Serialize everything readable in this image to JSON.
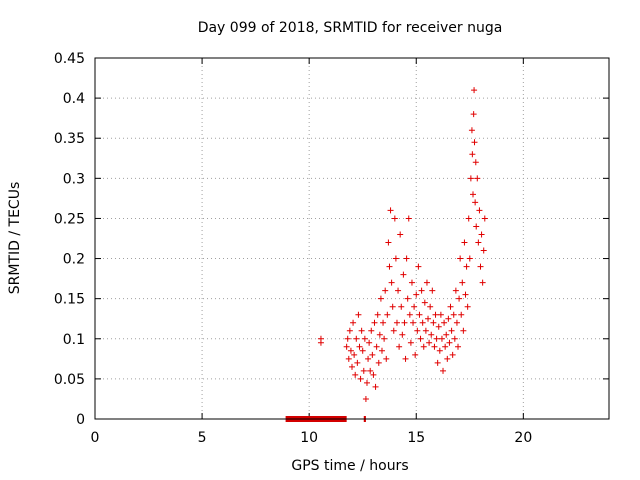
{
  "chart_data": {
    "type": "scatter",
    "title": "Day 099 of 2018, SRMTID for receiver nuga",
    "xlabel": "GPS time / hours",
    "ylabel": "SRMTID / TECUs",
    "xlim": [
      0,
      24
    ],
    "ylim": [
      0,
      0.45
    ],
    "x_ticks": [
      0,
      5,
      10,
      15,
      20
    ],
    "x_tick_labels": [
      "0",
      "5",
      "10",
      "15",
      "20"
    ],
    "y_ticks": [
      0,
      0.05,
      0.1,
      0.15,
      0.2,
      0.25,
      0.3,
      0.35,
      0.4,
      0.45
    ],
    "y_tick_labels": [
      "0",
      "0.05",
      "0.1",
      "0.15",
      "0.2",
      "0.25",
      "0.3",
      "0.35",
      "0.4",
      "0.45"
    ],
    "grid": true,
    "marker": "+",
    "marker_color": "#e00000",
    "coverage_color": "#d40000",
    "coverage_segments": [
      {
        "start": 8.9,
        "end": 11.75
      },
      {
        "start": 12.55,
        "end": 12.65
      }
    ],
    "series": [
      {
        "name": "SRMTID",
        "points": [
          [
            10.55,
            0.095
          ],
          [
            10.55,
            0.1
          ],
          [
            11.75,
            0.09
          ],
          [
            11.8,
            0.1
          ],
          [
            11.85,
            0.075
          ],
          [
            11.9,
            0.11
          ],
          [
            11.95,
            0.085
          ],
          [
            12.0,
            0.065
          ],
          [
            12.05,
            0.12
          ],
          [
            12.1,
            0.08
          ],
          [
            12.15,
            0.055
          ],
          [
            12.2,
            0.1
          ],
          [
            12.25,
            0.07
          ],
          [
            12.3,
            0.13
          ],
          [
            12.35,
            0.09
          ],
          [
            12.4,
            0.05
          ],
          [
            12.45,
            0.11
          ],
          [
            12.5,
            0.085
          ],
          [
            12.55,
            0.06
          ],
          [
            12.6,
            0.1
          ],
          [
            12.65,
            0.025
          ],
          [
            12.7,
            0.045
          ],
          [
            12.75,
            0.075
          ],
          [
            12.8,
            0.095
          ],
          [
            12.85,
            0.06
          ],
          [
            12.9,
            0.11
          ],
          [
            12.95,
            0.08
          ],
          [
            13.0,
            0.055
          ],
          [
            13.05,
            0.12
          ],
          [
            13.1,
            0.04
          ],
          [
            13.15,
            0.09
          ],
          [
            13.2,
            0.13
          ],
          [
            13.25,
            0.07
          ],
          [
            13.3,
            0.105
          ],
          [
            13.35,
            0.15
          ],
          [
            13.4,
            0.085
          ],
          [
            13.45,
            0.12
          ],
          [
            13.5,
            0.1
          ],
          [
            13.55,
            0.16
          ],
          [
            13.6,
            0.075
          ],
          [
            13.65,
            0.13
          ],
          [
            13.7,
            0.22
          ],
          [
            13.75,
            0.19
          ],
          [
            13.8,
            0.26
          ],
          [
            13.85,
            0.17
          ],
          [
            13.9,
            0.14
          ],
          [
            13.95,
            0.11
          ],
          [
            14.0,
            0.25
          ],
          [
            14.05,
            0.2
          ],
          [
            14.1,
            0.12
          ],
          [
            14.15,
            0.16
          ],
          [
            14.2,
            0.09
          ],
          [
            14.25,
            0.23
          ],
          [
            14.3,
            0.14
          ],
          [
            14.35,
            0.105
          ],
          [
            14.4,
            0.18
          ],
          [
            14.45,
            0.12
          ],
          [
            14.5,
            0.075
          ],
          [
            14.55,
            0.2
          ],
          [
            14.6,
            0.15
          ],
          [
            14.65,
            0.25
          ],
          [
            14.7,
            0.13
          ],
          [
            14.75,
            0.095
          ],
          [
            14.8,
            0.17
          ],
          [
            14.85,
            0.12
          ],
          [
            14.9,
            0.14
          ],
          [
            14.95,
            0.08
          ],
          [
            15.0,
            0.155
          ],
          [
            15.05,
            0.11
          ],
          [
            15.1,
            0.19
          ],
          [
            15.15,
            0.13
          ],
          [
            15.2,
            0.1
          ],
          [
            15.25,
            0.16
          ],
          [
            15.3,
            0.12
          ],
          [
            15.35,
            0.09
          ],
          [
            15.4,
            0.145
          ],
          [
            15.45,
            0.11
          ],
          [
            15.5,
            0.17
          ],
          [
            15.55,
            0.125
          ],
          [
            15.6,
            0.095
          ],
          [
            15.65,
            0.14
          ],
          [
            15.7,
            0.105
          ],
          [
            15.75,
            0.16
          ],
          [
            15.8,
            0.12
          ],
          [
            15.85,
            0.09
          ],
          [
            15.9,
            0.13
          ],
          [
            15.95,
            0.1
          ],
          [
            16.0,
            0.07
          ],
          [
            16.05,
            0.115
          ],
          [
            16.1,
            0.085
          ],
          [
            16.15,
            0.13
          ],
          [
            16.2,
            0.1
          ],
          [
            16.25,
            0.06
          ],
          [
            16.3,
            0.12
          ],
          [
            16.35,
            0.09
          ],
          [
            16.4,
            0.105
          ],
          [
            16.45,
            0.075
          ],
          [
            16.5,
            0.125
          ],
          [
            16.55,
            0.095
          ],
          [
            16.6,
            0.14
          ],
          [
            16.65,
            0.11
          ],
          [
            16.7,
            0.08
          ],
          [
            16.75,
            0.13
          ],
          [
            16.8,
            0.1
          ],
          [
            16.85,
            0.16
          ],
          [
            16.9,
            0.12
          ],
          [
            16.95,
            0.09
          ],
          [
            17.0,
            0.15
          ],
          [
            17.05,
            0.2
          ],
          [
            17.1,
            0.13
          ],
          [
            17.15,
            0.17
          ],
          [
            17.2,
            0.11
          ],
          [
            17.25,
            0.22
          ],
          [
            17.3,
            0.155
          ],
          [
            17.35,
            0.19
          ],
          [
            17.4,
            0.14
          ],
          [
            17.45,
            0.25
          ],
          [
            17.5,
            0.2
          ],
          [
            17.55,
            0.3
          ],
          [
            17.6,
            0.36
          ],
          [
            17.62,
            0.33
          ],
          [
            17.65,
            0.28
          ],
          [
            17.68,
            0.38
          ],
          [
            17.7,
            0.41
          ],
          [
            17.72,
            0.345
          ],
          [
            17.75,
            0.27
          ],
          [
            17.78,
            0.32
          ],
          [
            17.8,
            0.24
          ],
          [
            17.85,
            0.3
          ],
          [
            17.9,
            0.22
          ],
          [
            17.95,
            0.26
          ],
          [
            18.0,
            0.19
          ],
          [
            18.05,
            0.23
          ],
          [
            18.1,
            0.17
          ],
          [
            18.15,
            0.21
          ],
          [
            18.2,
            0.25
          ]
        ]
      }
    ]
  }
}
